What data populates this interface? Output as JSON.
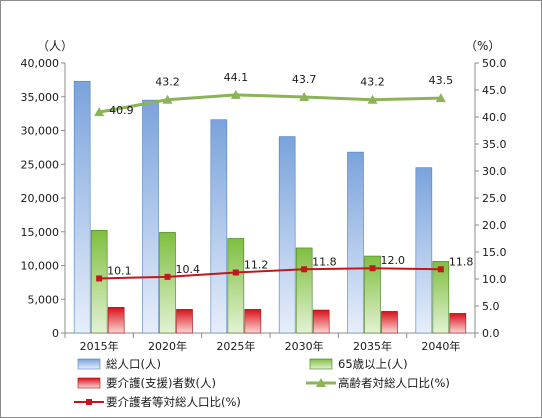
{
  "chart_data": {
    "type": "bar",
    "categories": [
      "2015年",
      "2020年",
      "2025年",
      "2030年",
      "2035年",
      "2040年"
    ],
    "left_axis": {
      "unit": "（人）",
      "min": 0,
      "max": 40000,
      "step": 5000,
      "ticks": [
        "0",
        "5,000",
        "10,000",
        "15,000",
        "20,000",
        "25,000",
        "30,000",
        "35,000",
        "40,000"
      ]
    },
    "right_axis": {
      "unit": "（%）",
      "min": 0,
      "max": 50,
      "step": 5,
      "ticks": [
        "0.0",
        "5.0",
        "10.0",
        "15.0",
        "20.0",
        "25.0",
        "30.0",
        "35.0",
        "40.0",
        "45.0",
        "50.0"
      ]
    },
    "series": [
      {
        "name": "総人口(人)",
        "kind": "bar",
        "axis": "left",
        "color": "#8eb4e3",
        "values": [
          37300,
          34500,
          31600,
          29100,
          26800,
          24500
        ]
      },
      {
        "name": "65歳以上(人)",
        "kind": "bar",
        "axis": "left",
        "color": "#92d050",
        "values": [
          15200,
          14900,
          14000,
          12600,
          11400,
          10600
        ]
      },
      {
        "name": "要介護(支援)者数(人)",
        "kind": "bar",
        "axis": "left",
        "color": "#e0221b",
        "values": [
          3800,
          3500,
          3500,
          3400,
          3200,
          2900
        ]
      },
      {
        "name": "高齢者対総人口比(%)",
        "kind": "line",
        "axis": "right",
        "color": "#8db359",
        "values": [
          40.9,
          43.2,
          44.1,
          43.7,
          43.2,
          43.5
        ],
        "labels": [
          "40.9",
          "43.2",
          "44.1",
          "43.7",
          "43.2",
          "43.5"
        ]
      },
      {
        "name": "要介護者等対総人口比(%)",
        "kind": "line",
        "axis": "right",
        "color": "#c0181c",
        "values": [
          10.1,
          10.4,
          11.2,
          11.8,
          12.0,
          11.8
        ],
        "labels": [
          "10.1",
          "10.4",
          "11.2",
          "11.8",
          "12.0",
          "11.8"
        ]
      }
    ],
    "legend": "bottom",
    "grid": false
  }
}
